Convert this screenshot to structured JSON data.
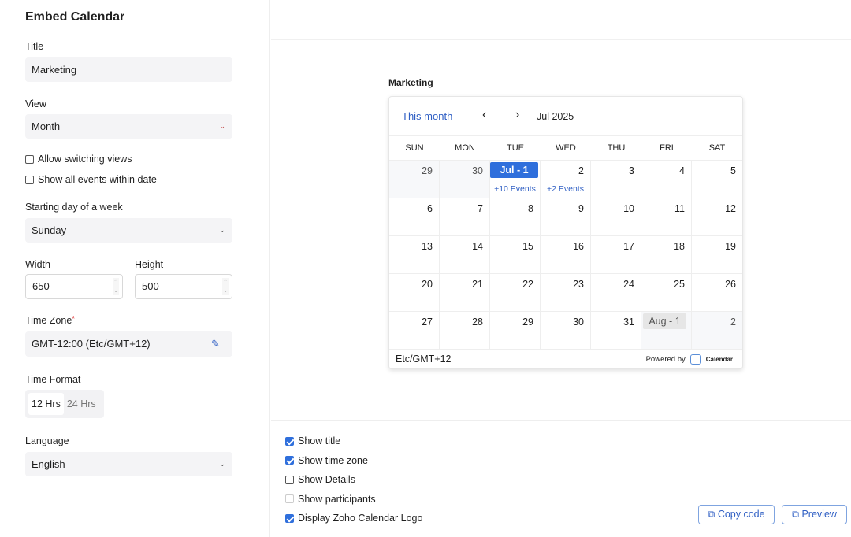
{
  "page_title": "Embed Calendar",
  "form": {
    "title_label": "Title",
    "title_value": "Marketing",
    "view_label": "View",
    "view_value": "Month",
    "allow_switch": {
      "label": "Allow switching views",
      "checked": false
    },
    "show_all": {
      "label": "Show all events within date",
      "checked": false
    },
    "start_day_label": "Starting day of a week",
    "start_day_value": "Sunday",
    "width_label": "Width",
    "width_value": "650",
    "height_label": "Height",
    "height_value": "500",
    "tz_label": "Time Zone",
    "tz_required": "*",
    "tz_value": "GMT-12:00 (Etc/GMT+12)",
    "time_format_label": "Time Format",
    "time_format_options": [
      "12 Hrs",
      "24 Hrs"
    ],
    "time_format_selected": "12 Hrs",
    "language_label": "Language",
    "language_value": "English"
  },
  "preview": {
    "title": "Marketing",
    "this_month": "This month",
    "month": "Jul 2025",
    "days": [
      "SUN",
      "MON",
      "TUE",
      "WED",
      "THU",
      "FRI",
      "SAT"
    ],
    "cells": [
      {
        "d": "29",
        "out": true
      },
      {
        "d": "30",
        "out": true
      },
      {
        "d": "Jul - 1",
        "today": true,
        "ev": "+10 Events"
      },
      {
        "d": "2",
        "ev": "+2 Events"
      },
      {
        "d": "3"
      },
      {
        "d": "4"
      },
      {
        "d": "5"
      },
      {
        "d": "6"
      },
      {
        "d": "7"
      },
      {
        "d": "8"
      },
      {
        "d": "9"
      },
      {
        "d": "10"
      },
      {
        "d": "11"
      },
      {
        "d": "12"
      },
      {
        "d": "13"
      },
      {
        "d": "14"
      },
      {
        "d": "15"
      },
      {
        "d": "16"
      },
      {
        "d": "17"
      },
      {
        "d": "18"
      },
      {
        "d": "19"
      },
      {
        "d": "20"
      },
      {
        "d": "21"
      },
      {
        "d": "22"
      },
      {
        "d": "23"
      },
      {
        "d": "24"
      },
      {
        "d": "25"
      },
      {
        "d": "26"
      },
      {
        "d": "27"
      },
      {
        "d": "28"
      },
      {
        "d": "29"
      },
      {
        "d": "30"
      },
      {
        "d": "31"
      },
      {
        "d": "Aug - 1",
        "next": true,
        "out": true
      },
      {
        "d": "2",
        "out": true
      }
    ],
    "timezone": "Etc/GMT+12",
    "powered_by": "Powered by",
    "logo_text": "Zoho Calendar"
  },
  "options": [
    {
      "label": "Show title",
      "checked": true
    },
    {
      "label": "Show time zone",
      "checked": true
    },
    {
      "label": "Show Details",
      "checked": false
    },
    {
      "label": "Show participants",
      "checked": false,
      "disabled": true
    },
    {
      "label": "Display Zoho Calendar Logo",
      "checked": true
    }
  ],
  "buttons": {
    "copy": "Copy code",
    "preview": "Preview"
  },
  "colors": {
    "accent": "#2f6fdc",
    "link": "#2f5fc4"
  }
}
